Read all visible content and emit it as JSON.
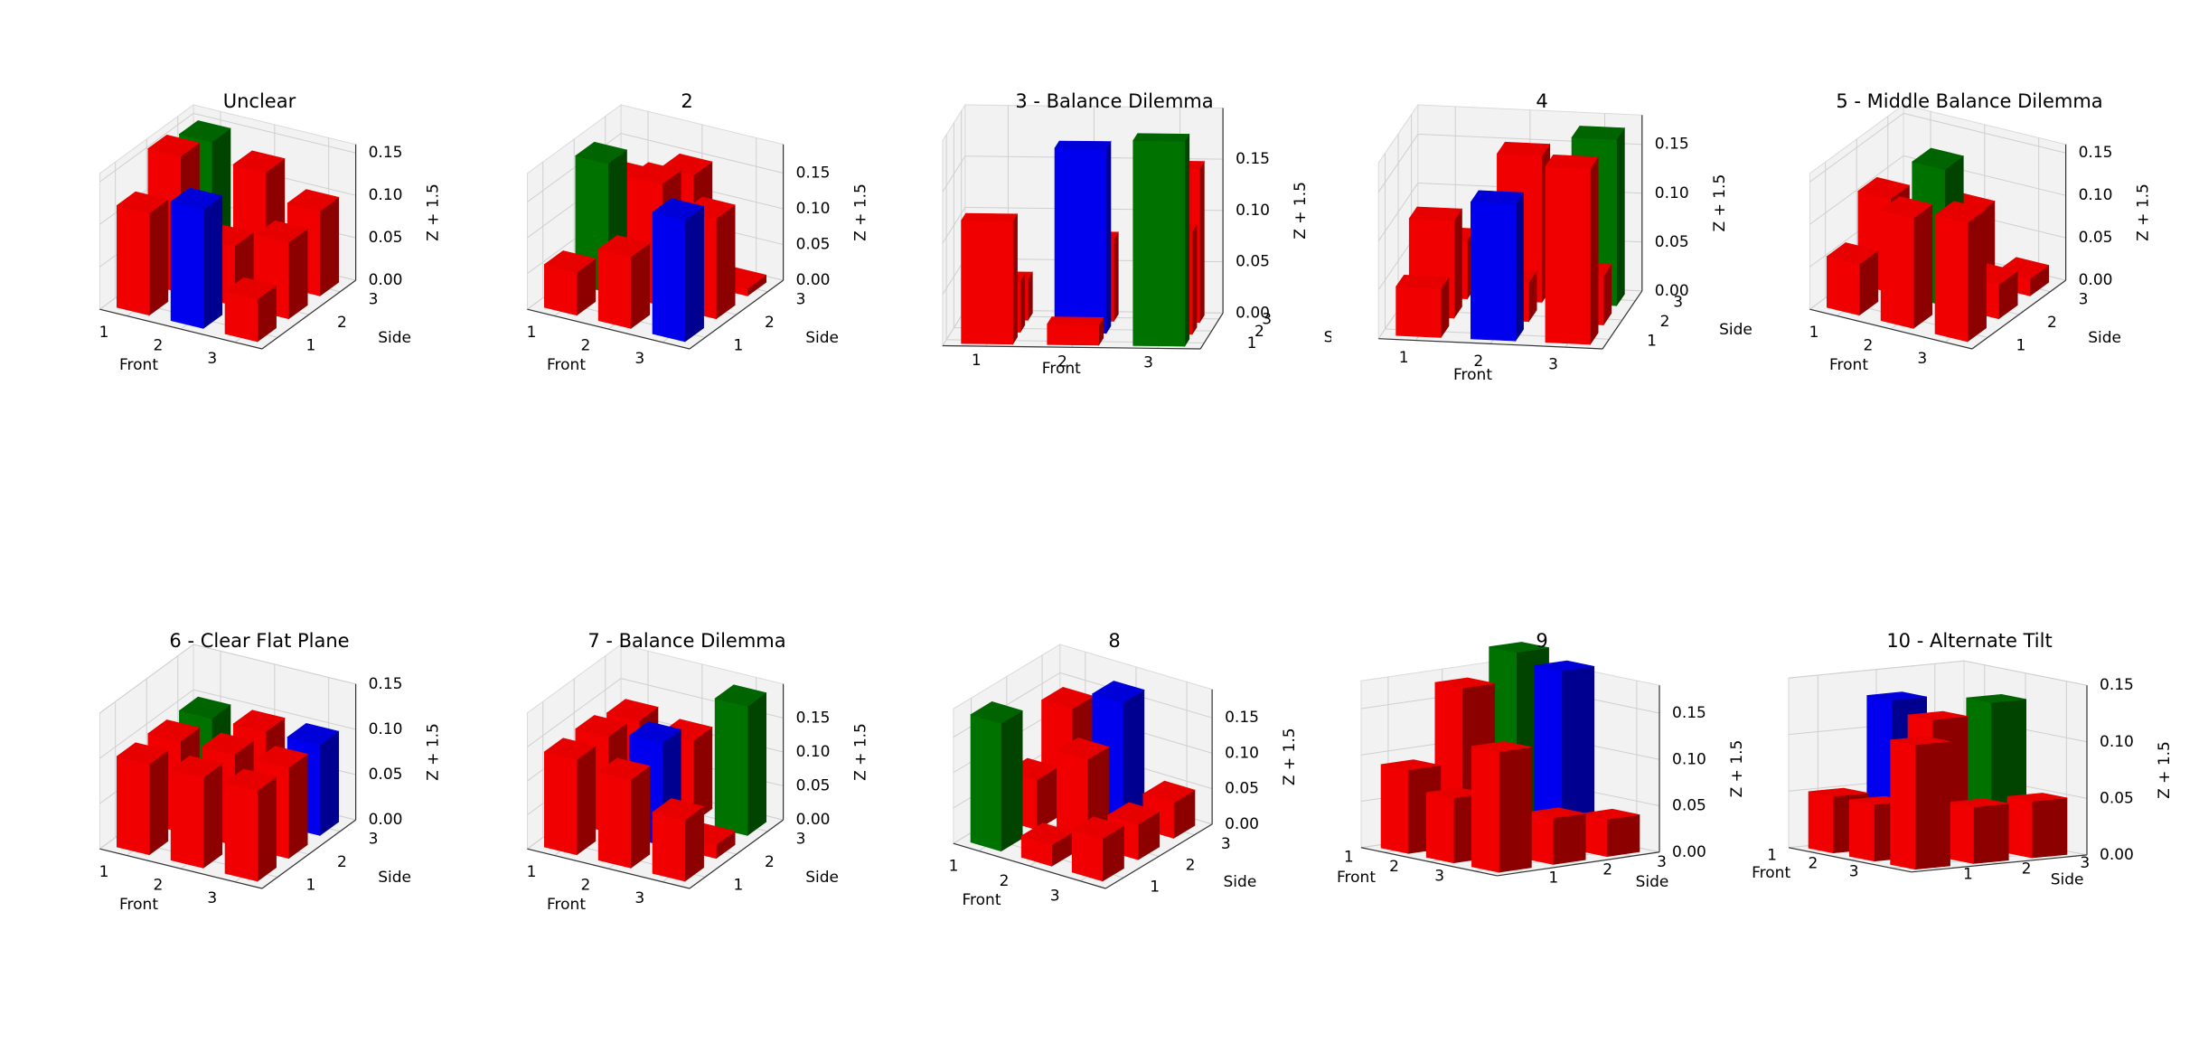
{
  "figure": {
    "background": "#ffffff"
  },
  "axis_text": {
    "front": "Front",
    "side": "Side",
    "z": "Z + 1.5"
  },
  "colors": {
    "red": "#ff0000",
    "blue": "#0000ff",
    "green": "#008000"
  },
  "chart_data": [
    {
      "type": "bar3d",
      "title": "Unclear",
      "front_ticks": [
        "1",
        "2",
        "3"
      ],
      "side_ticks": [
        "1",
        "2",
        "3"
      ],
      "z_ticks": [
        "0.00",
        "0.05",
        "0.10",
        "0.15"
      ],
      "zlim": [
        0,
        0.16
      ],
      "bars": [
        {
          "front": 1,
          "side": 1,
          "z": 0.12,
          "color": "red"
        },
        {
          "front": 2,
          "side": 1,
          "z": 0.14,
          "color": "blue"
        },
        {
          "front": 3,
          "side": 1,
          "z": 0.05,
          "color": "red"
        },
        {
          "front": 1,
          "side": 2,
          "z": 0.16,
          "color": "red"
        },
        {
          "front": 2,
          "side": 2,
          "z": 0.07,
          "color": "red"
        },
        {
          "front": 3,
          "side": 2,
          "z": 0.09,
          "color": "red"
        },
        {
          "front": 1,
          "side": 3,
          "z": 0.15,
          "color": "green"
        },
        {
          "front": 2,
          "side": 3,
          "z": 0.13,
          "color": "red"
        },
        {
          "front": 3,
          "side": 3,
          "z": 0.1,
          "color": "red"
        }
      ]
    },
    {
      "type": "bar3d",
      "title": "2",
      "front_ticks": [
        "1",
        "2",
        "3"
      ],
      "side_ticks": [
        "1",
        "2",
        "3"
      ],
      "z_ticks": [
        "0.00",
        "0.05",
        "0.10",
        "0.15"
      ],
      "zlim": [
        0,
        0.19
      ],
      "bars": [
        {
          "front": 1,
          "side": 1,
          "z": 0.06,
          "color": "red"
        },
        {
          "front": 2,
          "side": 1,
          "z": 0.1,
          "color": "red"
        },
        {
          "front": 3,
          "side": 1,
          "z": 0.17,
          "color": "blue"
        },
        {
          "front": 1,
          "side": 2,
          "z": 0.18,
          "color": "green"
        },
        {
          "front": 2,
          "side": 2,
          "z": 0.17,
          "color": "red"
        },
        {
          "front": 3,
          "side": 2,
          "z": 0.14,
          "color": "red"
        },
        {
          "front": 1,
          "side": 3,
          "z": 0.12,
          "color": "red"
        },
        {
          "front": 2,
          "side": 3,
          "z": 0.15,
          "color": "red"
        },
        {
          "front": 3,
          "side": 3,
          "z": 0.01,
          "color": "red"
        }
      ]
    },
    {
      "type": "bar3d",
      "title": "3 - Balance Dilemma",
      "front_ticks": [
        "1",
        "2",
        "3"
      ],
      "side_ticks": [
        "1",
        "2",
        "3"
      ],
      "z_ticks": [
        "0.00",
        "0.05",
        "0.10",
        "0.15"
      ],
      "zlim": [
        0,
        0.2
      ],
      "bars": [
        {
          "front": 1,
          "side": 1,
          "z": 0.12,
          "color": "red"
        },
        {
          "front": 2,
          "side": 1,
          "z": 0.02,
          "color": "red"
        },
        {
          "front": 3,
          "side": 1,
          "z": 0.2,
          "color": "green"
        },
        {
          "front": 1,
          "side": 2,
          "z": 0.05,
          "color": "red"
        },
        {
          "front": 2,
          "side": 2,
          "z": 0.18,
          "color": "blue"
        },
        {
          "front": 3,
          "side": 2,
          "z": 0.1,
          "color": "red"
        },
        {
          "front": 1,
          "side": 3,
          "z": 0.04,
          "color": "red"
        },
        {
          "front": 2,
          "side": 3,
          "z": 0.08,
          "color": "red"
        },
        {
          "front": 3,
          "side": 3,
          "z": 0.15,
          "color": "red"
        }
      ]
    },
    {
      "type": "bar3d",
      "title": "4",
      "front_ticks": [
        "1",
        "2",
        "3"
      ],
      "side_ticks": [
        "1",
        "2",
        "3"
      ],
      "z_ticks": [
        "0.00",
        "0.05",
        "0.10",
        "0.15"
      ],
      "zlim": [
        0,
        0.18
      ],
      "bars": [
        {
          "front": 1,
          "side": 1,
          "z": 0.05,
          "color": "red"
        },
        {
          "front": 2,
          "side": 1,
          "z": 0.14,
          "color": "blue"
        },
        {
          "front": 3,
          "side": 1,
          "z": 0.18,
          "color": "red"
        },
        {
          "front": 1,
          "side": 2,
          "z": 0.1,
          "color": "red"
        },
        {
          "front": 2,
          "side": 2,
          "z": 0.04,
          "color": "red"
        },
        {
          "front": 3,
          "side": 2,
          "z": 0.05,
          "color": "red"
        },
        {
          "front": 1,
          "side": 3,
          "z": 0.06,
          "color": "red"
        },
        {
          "front": 2,
          "side": 3,
          "z": 0.15,
          "color": "red"
        },
        {
          "front": 3,
          "side": 3,
          "z": 0.17,
          "color": "green"
        }
      ]
    },
    {
      "type": "bar3d",
      "title": "5 - Middle Balance Dilemma",
      "front_ticks": [
        "1",
        "2",
        "3"
      ],
      "side_ticks": [
        "1",
        "2",
        "3"
      ],
      "z_ticks": [
        "0.00",
        "0.05",
        "0.10",
        "0.15"
      ],
      "zlim": [
        0,
        0.16
      ],
      "bars": [
        {
          "front": 1,
          "side": 1,
          "z": 0.06,
          "color": "red"
        },
        {
          "front": 2,
          "side": 1,
          "z": 0.13,
          "color": "red"
        },
        {
          "front": 3,
          "side": 1,
          "z": 0.14,
          "color": "red"
        },
        {
          "front": 1,
          "side": 2,
          "z": 0.11,
          "color": "red"
        },
        {
          "front": 2,
          "side": 2,
          "z": 0.16,
          "color": "green"
        },
        {
          "front": 3,
          "side": 2,
          "z": 0.04,
          "color": "red"
        },
        {
          "front": 1,
          "side": 3,
          "z": 0.04,
          "color": "red"
        },
        {
          "front": 2,
          "side": 3,
          "z": 0.08,
          "color": "red"
        },
        {
          "front": 3,
          "side": 3,
          "z": 0.02,
          "color": "red"
        }
      ]
    },
    {
      "type": "bar3d",
      "title": "6 - Clear Flat Plane",
      "front_ticks": [
        "1",
        "2",
        "3"
      ],
      "side_ticks": [
        "1",
        "2",
        "3"
      ],
      "z_ticks": [
        "0.00",
        "0.05",
        "0.10",
        "0.15"
      ],
      "zlim": [
        0,
        0.15
      ],
      "bars": [
        {
          "front": 1,
          "side": 1,
          "z": 0.1,
          "color": "red"
        },
        {
          "front": 2,
          "side": 1,
          "z": 0.1,
          "color": "red"
        },
        {
          "front": 3,
          "side": 1,
          "z": 0.1,
          "color": "red"
        },
        {
          "front": 1,
          "side": 2,
          "z": 0.1,
          "color": "red"
        },
        {
          "front": 2,
          "side": 2,
          "z": 0.1,
          "color": "red"
        },
        {
          "front": 3,
          "side": 2,
          "z": 0.1,
          "color": "red"
        },
        {
          "front": 1,
          "side": 3,
          "z": 0.1,
          "color": "green"
        },
        {
          "front": 2,
          "side": 3,
          "z": 0.1,
          "color": "red"
        },
        {
          "front": 3,
          "side": 3,
          "z": 0.1,
          "color": "blue"
        }
      ]
    },
    {
      "type": "bar3d",
      "title": "7 - Balance Dilemma",
      "front_ticks": [
        "1",
        "2",
        "3"
      ],
      "side_ticks": [
        "1",
        "2",
        "3"
      ],
      "z_ticks": [
        "0.00",
        "0.05",
        "0.10",
        "0.15"
      ],
      "zlim": [
        0,
        0.2
      ],
      "bars": [
        {
          "front": 1,
          "side": 1,
          "z": 0.14,
          "color": "red"
        },
        {
          "front": 2,
          "side": 1,
          "z": 0.13,
          "color": "red"
        },
        {
          "front": 3,
          "side": 1,
          "z": 0.09,
          "color": "red"
        },
        {
          "front": 1,
          "side": 2,
          "z": 0.14,
          "color": "red"
        },
        {
          "front": 2,
          "side": 2,
          "z": 0.15,
          "color": "blue"
        },
        {
          "front": 3,
          "side": 2,
          "z": 0.02,
          "color": "red"
        },
        {
          "front": 1,
          "side": 3,
          "z": 0.13,
          "color": "red"
        },
        {
          "front": 2,
          "side": 3,
          "z": 0.12,
          "color": "red"
        },
        {
          "front": 3,
          "side": 3,
          "z": 0.19,
          "color": "green"
        }
      ]
    },
    {
      "type": "bar3d",
      "title": "8",
      "front_ticks": [
        "1",
        "2",
        "3"
      ],
      "side_ticks": [
        "1",
        "2",
        "3"
      ],
      "z_ticks": [
        "0.00",
        "0.05",
        "0.10",
        "0.15"
      ],
      "zlim": [
        0,
        0.19
      ],
      "bars": [
        {
          "front": 1,
          "side": 1,
          "z": 0.18,
          "color": "green"
        },
        {
          "front": 2,
          "side": 1,
          "z": 0.03,
          "color": "red"
        },
        {
          "front": 3,
          "side": 1,
          "z": 0.06,
          "color": "red"
        },
        {
          "front": 1,
          "side": 2,
          "z": 0.07,
          "color": "red"
        },
        {
          "front": 2,
          "side": 2,
          "z": 0.12,
          "color": "red"
        },
        {
          "front": 3,
          "side": 2,
          "z": 0.05,
          "color": "red"
        },
        {
          "front": 1,
          "side": 3,
          "z": 0.14,
          "color": "red"
        },
        {
          "front": 2,
          "side": 3,
          "z": 0.17,
          "color": "blue"
        },
        {
          "front": 3,
          "side": 3,
          "z": 0.05,
          "color": "red"
        }
      ]
    },
    {
      "type": "bar3d",
      "title": "9",
      "front_ticks": [
        "1",
        "2",
        "3"
      ],
      "side_ticks": [
        "1",
        "2",
        "3"
      ],
      "z_ticks": [
        "0.00",
        "0.05",
        "0.10",
        "0.15"
      ],
      "zlim": [
        0,
        0.18
      ],
      "bars": [
        {
          "front": 1,
          "side": 1,
          "z": 0.09,
          "color": "red"
        },
        {
          "front": 2,
          "side": 1,
          "z": 0.07,
          "color": "red"
        },
        {
          "front": 3,
          "side": 1,
          "z": 0.13,
          "color": "red"
        },
        {
          "front": 1,
          "side": 2,
          "z": 0.17,
          "color": "red"
        },
        {
          "front": 2,
          "side": 2,
          "z": 0.02,
          "color": "red"
        },
        {
          "front": 3,
          "side": 2,
          "z": 0.05,
          "color": "red"
        },
        {
          "front": 1,
          "side": 3,
          "z": 0.2,
          "color": "green"
        },
        {
          "front": 2,
          "side": 3,
          "z": 0.19,
          "color": "blue"
        },
        {
          "front": 3,
          "side": 3,
          "z": 0.04,
          "color": "red"
        }
      ]
    },
    {
      "type": "bar3d",
      "title": "10 - Alternate Tilt",
      "front_ticks": [
        "1",
        "2",
        "3"
      ],
      "side_ticks": [
        "1",
        "2",
        "3"
      ],
      "z_ticks": [
        "0.00",
        "0.05",
        "0.10",
        "0.15"
      ],
      "zlim": [
        0,
        0.15
      ],
      "bars": [
        {
          "front": 1,
          "side": 1,
          "z": 0.05,
          "color": "red"
        },
        {
          "front": 2,
          "side": 1,
          "z": 0.05,
          "color": "red"
        },
        {
          "front": 3,
          "side": 1,
          "z": 0.11,
          "color": "red"
        },
        {
          "front": 1,
          "side": 2,
          "z": 0.13,
          "color": "blue"
        },
        {
          "front": 2,
          "side": 2,
          "z": 0.12,
          "color": "red"
        },
        {
          "front": 3,
          "side": 2,
          "z": 0.05,
          "color": "red"
        },
        {
          "front": 1,
          "side": 3,
          "z": 0.05,
          "color": "red"
        },
        {
          "front": 2,
          "side": 3,
          "z": 0.13,
          "color": "green"
        },
        {
          "front": 3,
          "side": 3,
          "z": 0.05,
          "color": "red"
        }
      ]
    }
  ]
}
